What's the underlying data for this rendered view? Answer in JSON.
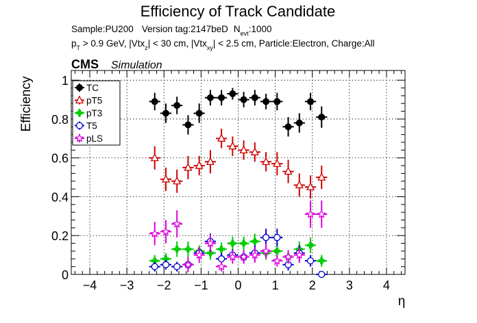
{
  "chart_data": {
    "type": "scatter",
    "title": "Efficiency of Track Candidate",
    "subtitle_line1": {
      "sample": "Sample:PU200",
      "version": "Version tag:2147beD",
      "nevt_label": "N",
      "nevt_sub": "evt",
      "nevt_value": ":1000"
    },
    "subtitle_line2": {
      "p": "p",
      "p_sub": "T",
      "p_rest": " > 0.9 GeV, |Vtx",
      "z_sub": "z",
      "z_rest": "| < 30 cm, |Vtx",
      "xy_sub": "xy",
      "xy_rest": "| < 2.5 cm, Particle:Electron, Charge:All"
    },
    "cms_label": "CMS",
    "simulation_label": "Simulation",
    "xlabel": "η",
    "ylabel": "Efficiency",
    "xlim": [
      -4.5,
      4.5
    ],
    "ylim": [
      0,
      1.05
    ],
    "xticks": [
      -4,
      -3,
      -2,
      -1,
      0,
      1,
      2,
      3,
      4
    ],
    "xtick_labels": [
      "−4",
      "−3",
      "−2",
      "−1",
      "0",
      "1",
      "2",
      "3",
      "4"
    ],
    "yticks": [
      0,
      0.2,
      0.4,
      0.6,
      0.8,
      1
    ],
    "ytick_labels": [
      "0",
      "0.2",
      "0.4",
      "0.6",
      "0.8",
      "1"
    ],
    "grid": true,
    "legend_position": "top-left",
    "bin_half_width": 0.15,
    "x": [
      -2.25,
      -1.95,
      -1.65,
      -1.35,
      -1.05,
      -0.75,
      -0.45,
      -0.15,
      0.15,
      0.45,
      0.75,
      1.05,
      1.35,
      1.65,
      1.95,
      2.25
    ],
    "series": [
      {
        "name": "TC",
        "color": "#000000",
        "marker": "filled-circle",
        "values": [
          0.89,
          0.83,
          0.87,
          0.77,
          0.83,
          0.91,
          0.91,
          0.93,
          0.9,
          0.91,
          0.89,
          0.89,
          0.76,
          0.78,
          0.89,
          0.81
        ],
        "errors": [
          0.045,
          0.05,
          0.045,
          0.05,
          0.05,
          0.04,
          0.04,
          0.03,
          0.04,
          0.04,
          0.04,
          0.045,
          0.05,
          0.05,
          0.045,
          0.055
        ]
      },
      {
        "name": "pT5",
        "color": "#cc0000",
        "marker": "open-triangle",
        "values": [
          0.6,
          0.49,
          0.48,
          0.55,
          0.56,
          0.58,
          0.7,
          0.66,
          0.64,
          0.63,
          0.58,
          0.57,
          0.53,
          0.46,
          0.45,
          0.5
        ],
        "errors": [
          0.06,
          0.06,
          0.06,
          0.06,
          0.05,
          0.06,
          0.05,
          0.05,
          0.05,
          0.05,
          0.05,
          0.06,
          0.06,
          0.06,
          0.06,
          0.06
        ]
      },
      {
        "name": "pT3",
        "color": "#00cc00",
        "marker": "filled-cross",
        "values": [
          0.07,
          0.08,
          0.13,
          0.13,
          0.12,
          0.11,
          0.13,
          0.16,
          0.16,
          0.17,
          0.11,
          0.12,
          0.09,
          0.13,
          0.15,
          0.07
        ],
        "errors": [
          0.03,
          0.03,
          0.04,
          0.04,
          0.03,
          0.035,
          0.035,
          0.035,
          0.035,
          0.04,
          0.035,
          0.035,
          0.03,
          0.04,
          0.04,
          0.03
        ]
      },
      {
        "name": "T5",
        "color": "#0000cc",
        "marker": "open-circle",
        "values": [
          0.04,
          0.05,
          0.04,
          0.05,
          0.11,
          0.17,
          0.08,
          0.1,
          0.09,
          0.11,
          0.19,
          0.19,
          0.05,
          0.11,
          0.07,
          0.0
        ],
        "errors": [
          0.025,
          0.025,
          0.025,
          0.03,
          0.03,
          0.04,
          0.03,
          0.03,
          0.03,
          0.04,
          0.045,
          0.045,
          0.03,
          0.04,
          0.03,
          0.0
        ]
      },
      {
        "name": "pLS",
        "color": "#dd00dd",
        "marker": "open-star",
        "values": [
          0.21,
          0.22,
          0.26,
          0.05,
          0.1,
          0.16,
          0.04,
          0.09,
          0.09,
          0.1,
          0.12,
          0.07,
          0.09,
          0.1,
          0.31,
          0.31
        ],
        "errors": [
          0.06,
          0.06,
          0.07,
          0.04,
          0.04,
          0.045,
          0.025,
          0.035,
          0.035,
          0.04,
          0.04,
          0.03,
          0.035,
          0.04,
          0.07,
          0.07
        ]
      }
    ]
  }
}
